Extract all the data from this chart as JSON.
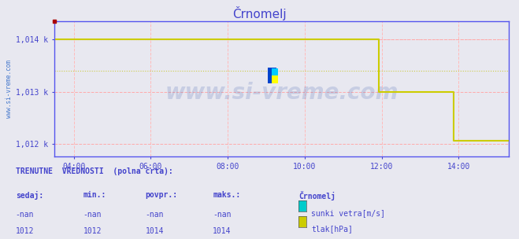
{
  "title": "Črnomelj",
  "title_color": "#4444cc",
  "bg_color": "#e8e8f0",
  "plot_bg_color": "#e8e8f0",
  "footer_bg_color": "#e8e8f0",
  "grid_color_h": "#ffaaaa",
  "grid_color_v": "#ffbbbb",
  "xlim": [
    3.5,
    15.3
  ],
  "ylim": [
    1011.75,
    1014.35
  ],
  "yticks": [
    1012,
    1013,
    1014
  ],
  "ytick_labels": [
    "1,012 k",
    "1,013 k",
    "1,014 k"
  ],
  "xticks": [
    4,
    6,
    8,
    10,
    12,
    14
  ],
  "xtick_labels": [
    "04:00",
    "06:00",
    "08:00",
    "10:00",
    "12:00",
    "14:00"
  ],
  "axis_color": "#5555ee",
  "tick_color": "#4444cc",
  "watermark": "www.si-vreme.com",
  "watermark_color": "#3355aa",
  "watermark_alpha": 0.18,
  "ylabel_text": "www.si-vreme.com",
  "ylabel_color": "#4477cc",
  "tlak_color": "#cccc00",
  "tlak_data_x": [
    3.52,
    11.92,
    11.92,
    13.87,
    13.87,
    15.3
  ],
  "tlak_data_y": [
    1014.0,
    1014.0,
    1013.0,
    1013.0,
    1012.05,
    1012.05
  ],
  "sunki_color": "#00cccc",
  "hline1_y": 1014.0,
  "hline1_color": "#ffaaaa",
  "hline2_y": 1013.4,
  "hline2_color": "#cccc44",
  "hline2_style": "dotted",
  "marker_color": "#aa0000",
  "arrow_color": "#aa0000",
  "text_color": "#4444cc",
  "footer_header": "TRENUTNE  VREDNOSTI  (polna črta):",
  "footer_col_headers": [
    "sedaj:",
    "min.:",
    "povpr.:",
    "maks.:"
  ],
  "footer_row1": [
    "-nan",
    "-nan",
    "-nan",
    "-nan"
  ],
  "footer_row2": [
    "1012",
    "1012",
    "1014",
    "1014"
  ],
  "footer_station": "Črnomelj",
  "footer_legend1_label": "sunki vetra[m/s]",
  "footer_legend1_color": "#00cccc",
  "footer_legend2_label": "tlak[hPa]",
  "footer_legend2_color": "#cccc00"
}
